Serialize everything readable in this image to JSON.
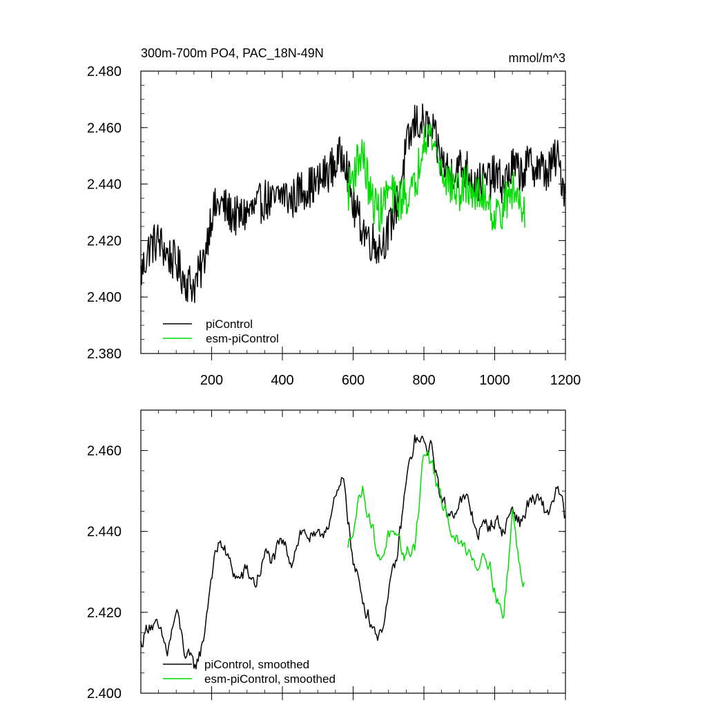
{
  "chart_data": [
    {
      "type": "line",
      "title": "300m-700m PO4, PAC_18N-49N",
      "units": "mmol/m^3",
      "xlim": [
        0,
        1200
      ],
      "ylim": [
        2.38,
        2.48
      ],
      "xticks": [
        200,
        400,
        600,
        800,
        1000,
        1200
      ],
      "xtick_labels": [
        "200",
        "400",
        "600",
        "800",
        "1000",
        "1200"
      ],
      "yticks": [
        2.38,
        2.4,
        2.42,
        2.44,
        2.46,
        2.48
      ],
      "ytick_labels": [
        "2.380",
        "2.400",
        "2.420",
        "2.440",
        "2.460",
        "2.480"
      ],
      "legend_position": "bottom-left",
      "series": [
        {
          "name": "piControl",
          "color": "#000000",
          "x": [
            0,
            25,
            50,
            75,
            100,
            125,
            150,
            175,
            200,
            225,
            250,
            275,
            300,
            325,
            350,
            375,
            400,
            425,
            450,
            475,
            500,
            525,
            550,
            575,
            600,
            625,
            650,
            675,
            700,
            725,
            750,
            775,
            800,
            825,
            850,
            875,
            900,
            925,
            950,
            975,
            1000,
            1025,
            1050,
            1075,
            1100,
            1125,
            1150,
            1175,
            1200
          ],
          "values": [
            2.408,
            2.418,
            2.42,
            2.415,
            2.412,
            2.406,
            2.404,
            2.411,
            2.43,
            2.433,
            2.43,
            2.428,
            2.43,
            2.431,
            2.435,
            2.433,
            2.437,
            2.434,
            2.438,
            2.439,
            2.44,
            2.444,
            2.447,
            2.452,
            2.432,
            2.425,
            2.42,
            2.418,
            2.423,
            2.434,
            2.452,
            2.462,
            2.461,
            2.458,
            2.448,
            2.444,
            2.446,
            2.445,
            2.44,
            2.441,
            2.443,
            2.44,
            2.446,
            2.444,
            2.447,
            2.446,
            2.444,
            2.45,
            2.437
          ]
        },
        {
          "name": "esm-piControl",
          "color": "#00dd00",
          "x": [
            585,
            600,
            625,
            650,
            675,
            700,
            725,
            750,
            775,
            800,
            825,
            850,
            875,
            900,
            925,
            950,
            975,
            1000,
            1025,
            1050,
            1075,
            1085
          ],
          "values": [
            2.437,
            2.444,
            2.452,
            2.435,
            2.43,
            2.438,
            2.434,
            2.436,
            2.438,
            2.459,
            2.456,
            2.445,
            2.44,
            2.437,
            2.44,
            2.435,
            2.437,
            2.428,
            2.432,
            2.438,
            2.434,
            2.432
          ]
        }
      ]
    },
    {
      "type": "line",
      "xlim": [
        0,
        1200
      ],
      "ylim": [
        2.4,
        2.47
      ],
      "yticks": [
        2.4,
        2.42,
        2.44,
        2.46
      ],
      "ytick_labels": [
        "2.400",
        "2.420",
        "2.440",
        "2.460"
      ],
      "legend_position": "bottom-left",
      "series": [
        {
          "name": "piControl, smoothed",
          "color": "#000000",
          "x": [
            0,
            25,
            50,
            75,
            100,
            125,
            150,
            175,
            200,
            225,
            250,
            275,
            300,
            325,
            350,
            375,
            400,
            425,
            450,
            475,
            500,
            525,
            550,
            575,
            600,
            625,
            650,
            675,
            700,
            725,
            750,
            775,
            800,
            825,
            850,
            875,
            900,
            925,
            950,
            975,
            1000,
            1025,
            1050,
            1075,
            1100,
            1125,
            1150,
            1175,
            1200
          ],
          "values": [
            2.412,
            2.418,
            2.415,
            2.41,
            2.42,
            2.41,
            2.406,
            2.412,
            2.43,
            2.438,
            2.432,
            2.428,
            2.43,
            2.427,
            2.434,
            2.433,
            2.437,
            2.433,
            2.44,
            2.439,
            2.437,
            2.442,
            2.447,
            2.453,
            2.432,
            2.424,
            2.418,
            2.414,
            2.424,
            2.434,
            2.452,
            2.463,
            2.461,
            2.46,
            2.447,
            2.444,
            2.448,
            2.447,
            2.44,
            2.441,
            2.443,
            2.44,
            2.446,
            2.442,
            2.448,
            2.447,
            2.444,
            2.451,
            2.443
          ]
        },
        {
          "name": "esm-piControl, smoothed",
          "color": "#00dd00",
          "x": [
            585,
            600,
            625,
            650,
            675,
            700,
            725,
            750,
            775,
            800,
            825,
            850,
            875,
            900,
            925,
            950,
            975,
            1000,
            1025,
            1050,
            1075,
            1085
          ],
          "values": [
            2.435,
            2.442,
            2.451,
            2.443,
            2.432,
            2.44,
            2.436,
            2.434,
            2.437,
            2.46,
            2.456,
            2.446,
            2.442,
            2.436,
            2.436,
            2.432,
            2.436,
            2.426,
            2.418,
            2.445,
            2.428,
            2.428
          ]
        }
      ]
    }
  ]
}
